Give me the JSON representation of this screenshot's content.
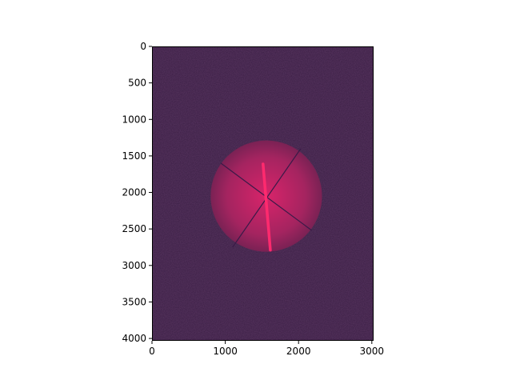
{
  "chart_data": {
    "type": "heatmap",
    "title": "",
    "xlabel": "",
    "ylabel": "",
    "xlim": [
      0,
      3024
    ],
    "ylim": [
      4032,
      0
    ],
    "x_ticks": [
      {
        "value": 0,
        "label": "0"
      },
      {
        "value": 1000,
        "label": "1000"
      },
      {
        "value": 2000,
        "label": "2000"
      },
      {
        "value": 3000,
        "label": "3000"
      }
    ],
    "y_ticks": [
      {
        "value": 0,
        "label": "0"
      },
      {
        "value": 500,
        "label": "500"
      },
      {
        "value": 1000,
        "label": "1000"
      },
      {
        "value": 1500,
        "label": "1500"
      },
      {
        "value": 2000,
        "label": "2000"
      },
      {
        "value": 2500,
        "label": "2500"
      },
      {
        "value": 3000,
        "label": "3000"
      },
      {
        "value": 3500,
        "label": "3500"
      },
      {
        "value": 4000,
        "label": "4000"
      }
    ],
    "grid": false,
    "colors": {
      "background": "#3a1e44",
      "glow_center": "#d8246a",
      "glow_edge": "#7a2254",
      "streak": "#ff2a6e",
      "crosshair": "#3a1a48"
    },
    "image_features": {
      "glow_disc": {
        "cx": 1560,
        "cy": 2050,
        "r": 760
      },
      "crosshairs": [
        {
          "x1": 940,
          "y1": 1600,
          "x2": 2180,
          "y2": 2520
        },
        {
          "x1": 2030,
          "y1": 1400,
          "x2": 1100,
          "y2": 2750
        }
      ],
      "streak": {
        "x1": 1515,
        "y1": 1610,
        "x2": 1615,
        "y2": 2790
      }
    }
  }
}
